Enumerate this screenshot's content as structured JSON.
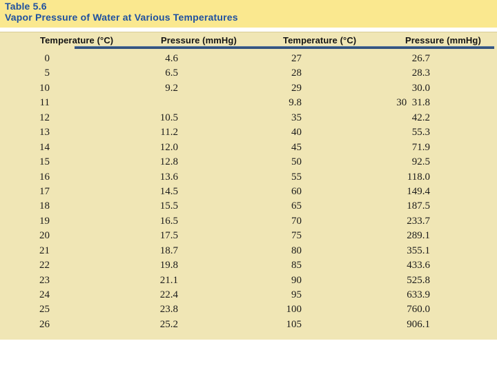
{
  "title": {
    "line1": "Table 5.6",
    "line2": "Vapor Pressure of Water at Various Temperatures"
  },
  "table": {
    "headers": [
      "Temperature (°C)",
      "Pressure (mmHg)",
      "Temperature (°C)",
      "Pressure (mmHg)"
    ],
    "rows": [
      [
        "0",
        "4.6",
        "27",
        "26.7"
      ],
      [
        "5",
        "6.5",
        "28",
        "28.3"
      ],
      [
        "10",
        "9.2",
        "29",
        "30.0"
      ],
      [
        "11",
        "",
        "9.8",
        "30  31.8"
      ],
      [
        "12",
        "10.5",
        "35",
        "42.2"
      ],
      [
        "13",
        "11.2",
        "40",
        "55.3"
      ],
      [
        "14",
        "12.0",
        "45",
        "71.9"
      ],
      [
        "15",
        "12.8",
        "50",
        "92.5"
      ],
      [
        "16",
        "13.6",
        "55",
        "118.0"
      ],
      [
        "17",
        "14.5",
        "60",
        "149.4"
      ],
      [
        "18",
        "15.5",
        "65",
        "187.5"
      ],
      [
        "19",
        "16.5",
        "70",
        "233.7"
      ],
      [
        "20",
        "17.5",
        "75",
        "289.1"
      ],
      [
        "21",
        "18.7",
        "80",
        "355.1"
      ],
      [
        "22",
        "19.8",
        "85",
        "433.6"
      ],
      [
        "23",
        "21.1",
        "90",
        "525.8"
      ],
      [
        "24",
        "22.4",
        "95",
        "633.9"
      ],
      [
        "25",
        "23.8",
        "100",
        "760.0"
      ],
      [
        "26",
        "25.2",
        "105",
        "906.1"
      ]
    ]
  },
  "colors": {
    "title_band_bg": "#fae88f",
    "title_text": "#1f51a0",
    "table_bg": "#f0e6b5",
    "header_rule": "#33537f",
    "body_text": "#1a1a1a"
  }
}
